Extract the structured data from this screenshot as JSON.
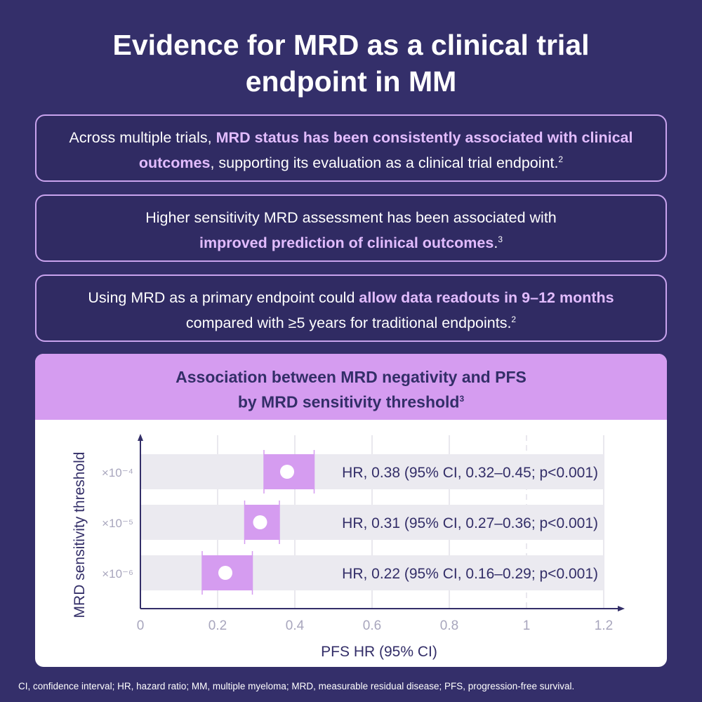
{
  "title_line1": "Evidence for MRD as a clinical trial",
  "title_line2": "endpoint in MM",
  "boxes": [
    {
      "pre": "Across multiple trials, ",
      "bold": "MRD status has been consistently associated with clinical outcomes",
      "post": ", supporting its evaluation as a clinical trial endpoint.",
      "ref": "2"
    },
    {
      "pre": "Higher sensitivity MRD assessment has been associated with ",
      "bold": "improved prediction of clinical outcomes",
      "post": ".",
      "ref": "3"
    },
    {
      "pre": "Using MRD as a primary endpoint could ",
      "bold": "allow data readouts in 9–12 months",
      "post": " compared with ≥5 years for traditional endpoints.",
      "ref": "2"
    }
  ],
  "chart_data": {
    "type": "forest",
    "title_line1": "Association between MRD negativity and PFS",
    "title_line2": "by MRD sensitivity threshold",
    "title_ref": "3",
    "xlabel": "PFS HR (95% CI)",
    "ylabel": "MRD sensitivity threshold",
    "xlim": [
      0,
      1.2
    ],
    "xticks": [
      "0",
      "0.2",
      "0.4",
      "0.6",
      "0.8",
      "1",
      "1.2"
    ],
    "reference_line": 1,
    "rows": [
      {
        "label": "×10⁻⁴",
        "hr": 0.38,
        "lo": 0.32,
        "hi": 0.45,
        "text": "HR, 0.38 (95% CI, 0.32–0.45; p<0.001)"
      },
      {
        "label": "×10⁻⁵",
        "hr": 0.31,
        "lo": 0.27,
        "hi": 0.36,
        "text": "HR, 0.31 (95% CI, 0.27–0.36; p<0.001)"
      },
      {
        "label": "×10⁻⁶",
        "hr": 0.22,
        "lo": 0.16,
        "hi": 0.29,
        "text": "HR, 0.22 (95% CI, 0.16–0.29; p<0.001)"
      }
    ],
    "colors": {
      "ci_box": "#d59cf0",
      "band": "#ebeaf0",
      "axis": "#332e68",
      "grid": "#e2e1e8",
      "point": "#ffffff"
    }
  },
  "footnote": "CI, confidence interval; HR, hazard ratio; MM, multiple myeloma; MRD, measurable residual disease; PFS, progression-free survival."
}
